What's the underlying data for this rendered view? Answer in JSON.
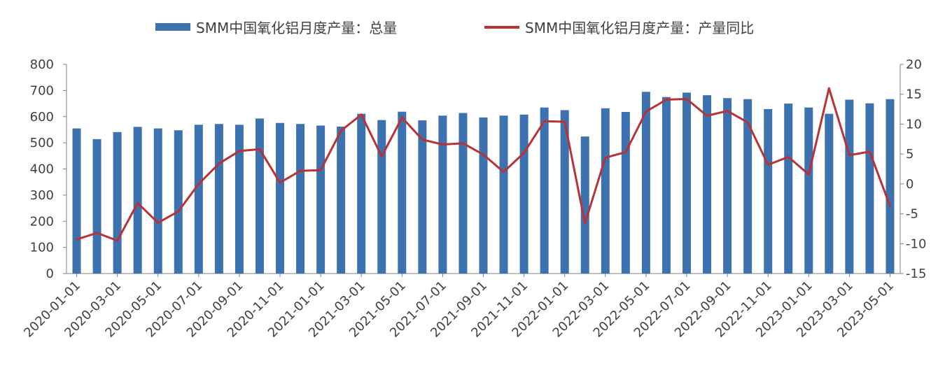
{
  "legend": {
    "bar_label": "SMM中国氧化铝月度产量：总量",
    "line_label": "SMM中国氧化铝月度产量：产量同比"
  },
  "colors": {
    "bar": "#3d72b0",
    "line": "#b83236",
    "axis": "#808080",
    "text": "#404040"
  },
  "chart_data": {
    "type": "bar",
    "x_tick_labels": [
      "2020-01-01",
      "2020-03-01",
      "2020-05-01",
      "2020-07-01",
      "2020-09-01",
      "2020-11-01",
      "2021-01-01",
      "2021-03-01",
      "2021-05-01",
      "2021-07-01",
      "2021-09-01",
      "2021-11-01",
      "2022-01-01",
      "2022-03-01",
      "2022-05-01",
      "2022-07-01",
      "2022-09-01",
      "2022-11-01",
      "2023-01-01",
      "2023-03-01",
      "2023-05-01"
    ],
    "categories": [
      "2020-01",
      "2020-02",
      "2020-03",
      "2020-04",
      "2020-05",
      "2020-06",
      "2020-07",
      "2020-08",
      "2020-09",
      "2020-10",
      "2020-11",
      "2020-12",
      "2021-01",
      "2021-02",
      "2021-03",
      "2021-04",
      "2021-05",
      "2021-06",
      "2021-07",
      "2021-08",
      "2021-09",
      "2021-10",
      "2021-11",
      "2021-12",
      "2022-01",
      "2022-02",
      "2022-03",
      "2022-04",
      "2022-05",
      "2022-06",
      "2022-07",
      "2022-08",
      "2022-09",
      "2022-10",
      "2022-11",
      "2022-12",
      "2023-01",
      "2023-02",
      "2023-03",
      "2023-04",
      "2023-05"
    ],
    "series": [
      {
        "name": "SMM中国氧化铝月度产量：总量",
        "type": "bar",
        "axis": "left",
        "values": [
          555,
          514,
          541,
          561,
          555,
          548,
          569,
          572,
          569,
          593,
          576,
          572,
          566,
          562,
          611,
          587,
          619,
          586,
          604,
          614,
          597,
          604,
          608,
          635,
          625,
          524,
          632,
          618,
          695,
          675,
          692,
          682,
          671,
          667,
          629,
          650,
          635,
          611,
          665,
          651,
          667
        ]
      },
      {
        "name": "SMM中国氧化铝月度产量：产量同比",
        "type": "line",
        "axis": "right",
        "values": [
          -9.3,
          -8.2,
          -9.5,
          -3.2,
          -6.5,
          -4.6,
          0.0,
          3.4,
          5.5,
          5.8,
          0.2,
          2.2,
          2.3,
          8.9,
          11.6,
          4.6,
          11.1,
          7.4,
          6.6,
          6.8,
          4.9,
          2.0,
          5.2,
          10.5,
          10.4,
          -6.6,
          4.4,
          5.3,
          12.1,
          14.1,
          14.2,
          11.4,
          12.2,
          10.3,
          3.2,
          4.5,
          1.6,
          16.0,
          4.8,
          5.4,
          -3.7
        ]
      }
    ],
    "y_left": {
      "min": 0,
      "max": 800,
      "step": 100,
      "ticks": [
        "0",
        "100",
        "200",
        "300",
        "400",
        "500",
        "600",
        "700",
        "800"
      ]
    },
    "y_right": {
      "min": -15,
      "max": 20,
      "step": 5,
      "ticks": [
        "-15",
        "-10",
        "-5",
        "0",
        "5",
        "10",
        "15",
        "20"
      ]
    },
    "legend_position": "top",
    "grid": false
  }
}
